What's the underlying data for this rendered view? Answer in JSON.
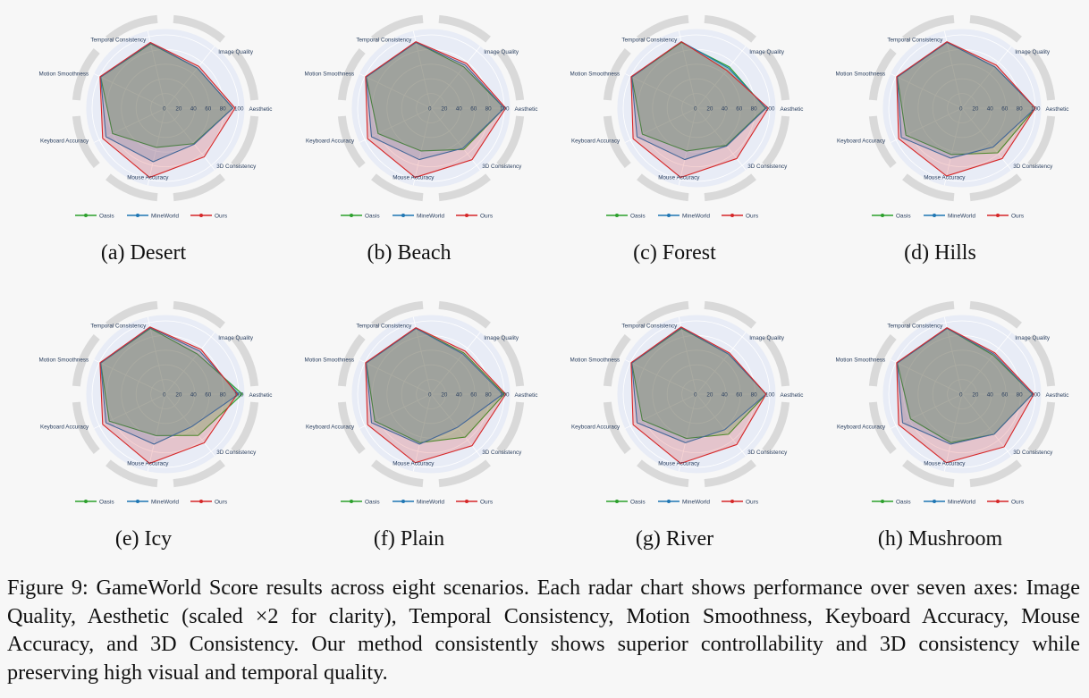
{
  "figure": {
    "caption": "Figure 9: GameWorld Score results across eight scenarios. Each radar chart shows performance over seven axes: Image Quality, Aesthetic (scaled ×2 for clarity), Temporal Consistency, Motion Smoothness, Keyboard Accuracy, Mouse Accuracy, and 3D Consistency. Our method consistently shows superior controllability and 3D consistency while preserving high visual and temporal quality."
  },
  "colors": {
    "oasis": "#2ca02c",
    "mineworld": "#1f77b4",
    "ours": "#d62728",
    "polar_bg": "#e8ecf6",
    "grid": "#ffffff",
    "ring": "#d9d9d9"
  },
  "chart_data": [
    {
      "type": "radar",
      "title": "(a) Desert",
      "axes": [
        "Aesthetic",
        "3D Consistency",
        "Mouse Accuracy",
        "Keyboard Accuracy",
        "Motion Smoothness",
        "Temporal Consistency",
        "Image Quality"
      ],
      "radial_ticks": [
        "0",
        "20",
        "40",
        "60",
        "80",
        "100"
      ],
      "radial_range": [
        0,
        100
      ],
      "legend": [
        "Oasis",
        "MineWorld",
        "Ours"
      ],
      "series": [
        {
          "name": "Oasis",
          "values": [
            92,
            62,
            55,
            80,
            98,
            90,
            70
          ]
        },
        {
          "name": "MineWorld",
          "values": [
            92,
            63,
            75,
            90,
            98,
            91,
            70
          ]
        },
        {
          "name": "Ours",
          "values": [
            95,
            85,
            97,
            95,
            99,
            92,
            73
          ]
        }
      ]
    },
    {
      "type": "radar",
      "title": "(b) Beach",
      "axes": [
        "Aesthetic",
        "3D Consistency",
        "Mouse Accuracy",
        "Keyboard Accuracy",
        "Motion Smoothness",
        "Temporal Consistency",
        "Image Quality"
      ],
      "radial_ticks": [
        "0",
        "20",
        "40",
        "60",
        "80",
        "100"
      ],
      "radial_range": [
        0,
        100
      ],
      "legend": [
        "Oasis",
        "MineWorld",
        "Ours"
      ],
      "series": [
        {
          "name": "Oasis",
          "values": [
            100,
            72,
            60,
            80,
            98,
            92,
            72
          ]
        },
        {
          "name": "MineWorld",
          "values": [
            100,
            70,
            72,
            90,
            98,
            92,
            75
          ]
        },
        {
          "name": "Ours",
          "values": [
            102,
            90,
            97,
            96,
            99,
            93,
            78
          ]
        }
      ]
    },
    {
      "type": "radar",
      "title": "(c) Forest",
      "axes": [
        "Aesthetic",
        "3D Consistency",
        "Mouse Accuracy",
        "Keyboard Accuracy",
        "Motion Smoothness",
        "Temporal Consistency",
        "Image Quality"
      ],
      "radial_ticks": [
        "0",
        "20",
        "40",
        "60",
        "80",
        "100"
      ],
      "radial_range": [
        0,
        100
      ],
      "legend": [
        "Oasis",
        "MineWorld",
        "Ours"
      ],
      "series": [
        {
          "name": "Oasis",
          "values": [
            94,
            65,
            60,
            82,
            98,
            92,
            72
          ]
        },
        {
          "name": "MineWorld",
          "values": [
            95,
            66,
            72,
            90,
            98,
            93,
            70
          ]
        },
        {
          "name": "Ours",
          "values": [
            98,
            88,
            97,
            96,
            99,
            93,
            66
          ]
        }
      ]
    },
    {
      "type": "radar",
      "title": "(d) Hills",
      "axes": [
        "Aesthetic",
        "3D Consistency",
        "Mouse Accuracy",
        "Keyboard Accuracy",
        "Motion Smoothness",
        "Temporal Consistency",
        "Image Quality"
      ],
      "radial_ticks": [
        "0",
        "20",
        "40",
        "60",
        "80",
        "100"
      ],
      "radial_range": [
        0,
        100
      ],
      "legend": [
        "Oasis",
        "MineWorld",
        "Ours"
      ],
      "series": [
        {
          "name": "Oasis",
          "values": [
            100,
            78,
            65,
            85,
            98,
            92,
            72
          ]
        },
        {
          "name": "MineWorld",
          "values": [
            100,
            68,
            70,
            92,
            98,
            92,
            72
          ]
        },
        {
          "name": "Ours",
          "values": [
            100,
            88,
            95,
            96,
            99,
            93,
            75
          ]
        }
      ]
    },
    {
      "type": "radar",
      "title": "(e) Icy",
      "axes": [
        "Aesthetic",
        "3D Consistency",
        "Mouse Accuracy",
        "Keyboard Accuracy",
        "Motion Smoothness",
        "Temporal Consistency",
        "Image Quality"
      ],
      "radial_ticks": [
        "0",
        "20",
        "40",
        "60",
        "80",
        "100"
      ],
      "radial_range": [
        0,
        100
      ],
      "legend": [
        "Oasis",
        "MineWorld",
        "Ours"
      ],
      "series": [
        {
          "name": "Oasis",
          "values": [
            105,
            72,
            58,
            85,
            98,
            92,
            70
          ]
        },
        {
          "name": "MineWorld",
          "values": [
            100,
            57,
            70,
            90,
            98,
            93,
            75
          ]
        },
        {
          "name": "Ours",
          "values": [
            98,
            85,
            97,
            95,
            99,
            94,
            78
          ]
        }
      ]
    },
    {
      "type": "radar",
      "title": "(f) Plain",
      "axes": [
        "Aesthetic",
        "3D Consistency",
        "Mouse Accuracy",
        "Keyboard Accuracy",
        "Motion Smoothness",
        "Temporal Consistency",
        "Image Quality"
      ],
      "radial_ticks": [
        "0",
        "20",
        "40",
        "60",
        "80",
        "100"
      ],
      "radial_range": [
        0,
        100
      ],
      "legend": [
        "Oasis",
        "MineWorld",
        "Ours"
      ],
      "series": [
        {
          "name": "Oasis",
          "values": [
            100,
            75,
            68,
            85,
            98,
            92,
            72
          ]
        },
        {
          "name": "MineWorld",
          "values": [
            98,
            58,
            70,
            90,
            98,
            92,
            70
          ]
        },
        {
          "name": "Ours",
          "values": [
            102,
            90,
            96,
            96,
            99,
            93,
            75
          ]
        }
      ]
    },
    {
      "type": "radar",
      "title": "(g) River",
      "axes": [
        "Aesthetic",
        "3D Consistency",
        "Mouse Accuracy",
        "Keyboard Accuracy",
        "Motion Smoothness",
        "Temporal Consistency",
        "Image Quality"
      ],
      "radial_ticks": [
        "0",
        "20",
        "40",
        "60",
        "80",
        "100"
      ],
      "radial_range": [
        0,
        100
      ],
      "legend": [
        "Oasis",
        "MineWorld",
        "Ours"
      ],
      "series": [
        {
          "name": "Oasis",
          "values": [
            95,
            70,
            62,
            82,
            98,
            92,
            70
          ]
        },
        {
          "name": "MineWorld",
          "values": [
            95,
            62,
            68,
            90,
            98,
            93,
            70
          ]
        },
        {
          "name": "Ours",
          "values": [
            95,
            88,
            97,
            96,
            99,
            94,
            72
          ]
        }
      ]
    },
    {
      "type": "radar",
      "title": "(h) Mushroom",
      "axes": [
        "Aesthetic",
        "3D Consistency",
        "Mouse Accuracy",
        "Keyboard Accuracy",
        "Motion Smoothness",
        "Temporal Consistency",
        "Image Quality"
      ],
      "radial_ticks": [
        "0",
        "20",
        "40",
        "60",
        "80",
        "100"
      ],
      "radial_range": [
        0,
        100
      ],
      "legend": [
        "Oasis",
        "MineWorld",
        "Ours"
      ],
      "series": [
        {
          "name": "Oasis",
          "values": [
            96,
            70,
            68,
            78,
            98,
            92,
            68
          ]
        },
        {
          "name": "MineWorld",
          "values": [
            96,
            70,
            70,
            90,
            98,
            92,
            70
          ]
        },
        {
          "name": "Ours",
          "values": [
            98,
            92,
            96,
            96,
            99,
            93,
            72
          ]
        }
      ]
    }
  ]
}
